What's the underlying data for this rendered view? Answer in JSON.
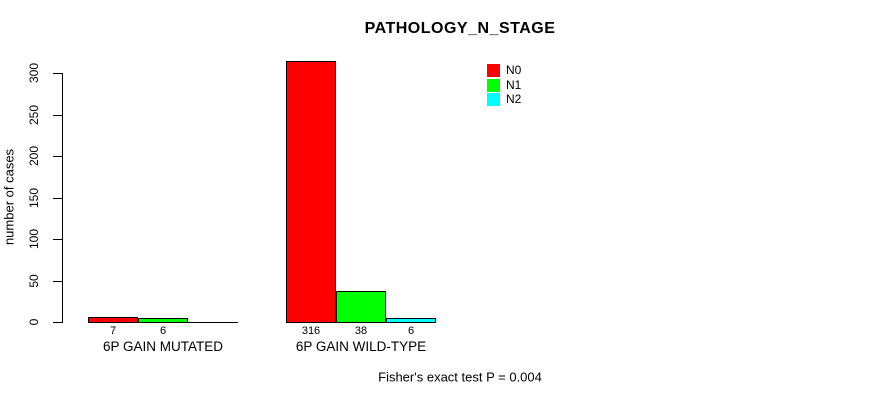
{
  "chart_data": {
    "type": "bar",
    "title": "PATHOLOGY_N_STAGE",
    "xlabel": "",
    "ylabel": "number of cases",
    "ylim": [
      0,
      300
    ],
    "yticks": [
      0,
      50,
      100,
      150,
      200,
      250,
      300
    ],
    "grid": false,
    "legend_position": "top-right-inside",
    "categories": [
      "6P GAIN MUTATED",
      "6P GAIN WILD-TYPE"
    ],
    "series": [
      {
        "name": "N0",
        "color": "#ff0000",
        "values": [
          7,
          316
        ]
      },
      {
        "name": "N1",
        "color": "#00ff00",
        "values": [
          6,
          38
        ]
      },
      {
        "name": "N2",
        "color": "#00ffff",
        "values": [
          null,
          6
        ]
      }
    ],
    "bar_labels_shown": true,
    "annotation": "Fisher's exact test P = 0.004"
  }
}
